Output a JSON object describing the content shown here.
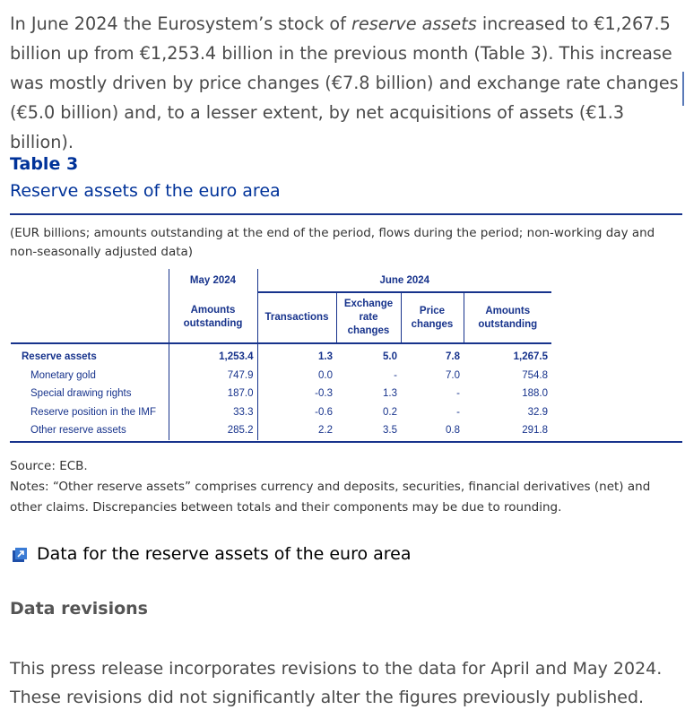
{
  "intro": {
    "p1": "In June 2024 the Eurosystem’s stock of ",
    "em": "reserve assets",
    "p2": " increased to €1,267.5 billion up from €1,253.4 billion in the previous month (Table 3). This increase was mostly driven by price changes (€7.8 billion) and exchange rate changes (€5.0 billion) and, to a lesser extent, by net acquisitions of assets (€1.3 billion)."
  },
  "table": {
    "title": "Table 3",
    "subtitle": "Reserve assets of the euro area",
    "note": "(EUR billions; amounts outstanding at the end of the period, flows during the period; non-working day and non-seasonally adjusted data)",
    "group_headers": [
      "May 2024",
      "June 2024"
    ],
    "columns": [
      "Amounts outstanding",
      "Transactions",
      "Exchange rate changes",
      "Price changes",
      "Amounts outstanding"
    ],
    "rows": [
      {
        "label": "Reserve assets",
        "values": [
          "1,253.4",
          "1.3",
          "5.0",
          "7.8",
          "1,267.5"
        ]
      },
      {
        "label": "Monetary gold",
        "values": [
          "747.9",
          "0.0",
          "-",
          "7.0",
          "754.8"
        ]
      },
      {
        "label": "Special drawing rights",
        "values": [
          "187.0",
          "-0.3",
          "1.3",
          "-",
          "188.0"
        ]
      },
      {
        "label": "Reserve position in the IMF",
        "values": [
          "33.3",
          "-0.6",
          "0.2",
          "-",
          "32.9"
        ]
      },
      {
        "label": "Other reserve assets",
        "values": [
          "285.2",
          "2.2",
          "3.5",
          "0.8",
          "291.8"
        ]
      }
    ],
    "source": "Source: ECB.",
    "notes": "Notes: “Other reserve assets” comprises currency and deposits, securities, financial derivatives (net) and other claims. Discrepancies between totals and their components may be due to rounding."
  },
  "data_link": {
    "label": "Data for the reserve assets of the euro area",
    "icon": "external-link-icon"
  },
  "revisions": {
    "heading": "Data revisions",
    "text": "This press release incorporates revisions to the data for April and May 2024. These revisions did not significantly alter the figures previously published."
  }
}
